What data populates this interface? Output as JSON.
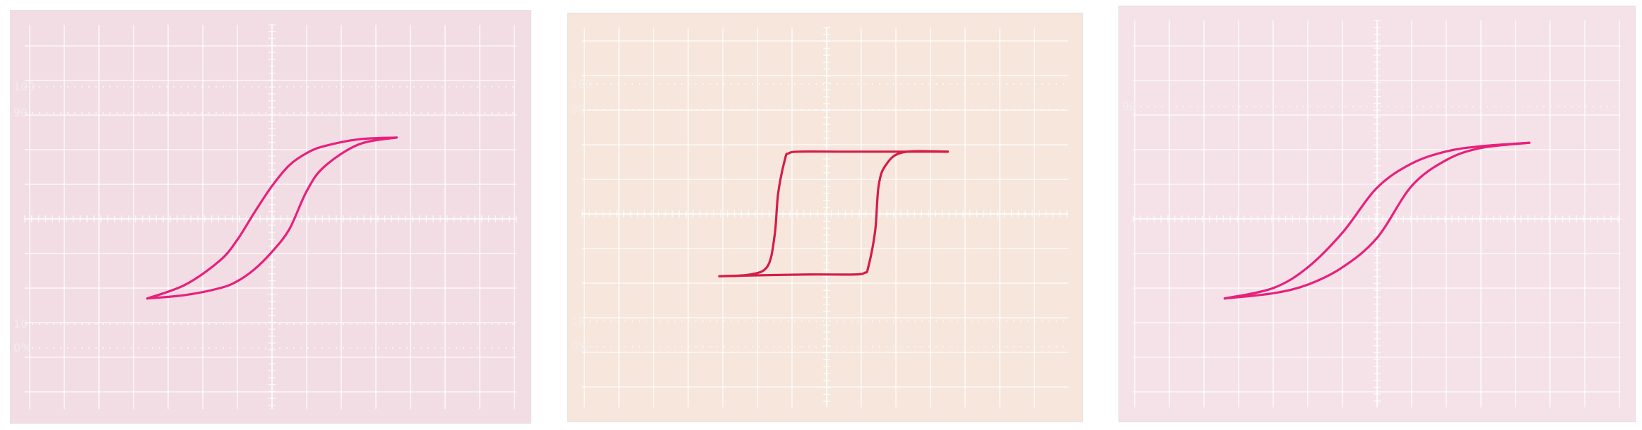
{
  "chart_data": [
    {
      "type": "line",
      "screen_labels": [
        "100",
        "90",
        "10",
        "0%"
      ],
      "grid": true,
      "background": "#f2dde4",
      "trace_color": "#e8207c",
      "series": [
        {
          "x": [
            -3.6,
            -2.5,
            -1.5,
            -1.0,
            -0.5,
            0.0,
            0.5,
            1.0,
            1.5,
            2.5,
            3.6
          ],
          "y": [
            -2.3,
            -1.9,
            -1.2,
            -0.6,
            0.2,
            0.95,
            1.55,
            1.9,
            2.1,
            2.3,
            2.35
          ]
        },
        {
          "x": [
            3.6,
            2.5,
            1.5,
            1.0,
            0.5,
            0.0,
            -0.5,
            -1.0,
            -1.5,
            -2.5,
            -3.6
          ],
          "y": [
            2.35,
            2.15,
            1.5,
            0.8,
            -0.3,
            -0.95,
            -1.45,
            -1.8,
            -2.0,
            -2.2,
            -2.3
          ]
        }
      ]
    },
    {
      "type": "line",
      "screen_labels": [
        "100",
        "90",
        "10",
        "0%"
      ],
      "grid": true,
      "background": "#f6e6dc",
      "trace_color": "#d41c48",
      "series": [
        {
          "x": [
            -3.1,
            -2.2,
            -1.7,
            -1.5,
            -1.4,
            -1.2,
            -1.1,
            -0.8,
            0.5,
            2.1,
            3.5
          ],
          "y": [
            -1.8,
            -1.75,
            -1.5,
            -0.6,
            0.6,
            1.6,
            1.75,
            1.8,
            1.8,
            1.8,
            1.8
          ]
        },
        {
          "x": [
            3.5,
            2.2,
            1.7,
            1.5,
            1.4,
            1.2,
            1.1,
            0.8,
            -0.5,
            -2.3,
            -3.1
          ],
          "y": [
            1.8,
            1.78,
            1.4,
            0.8,
            -0.5,
            -1.55,
            -1.7,
            -1.75,
            -1.75,
            -1.78,
            -1.8
          ]
        }
      ]
    },
    {
      "type": "line",
      "screen_labels": [
        "90"
      ],
      "grid": true,
      "background": "#f4e2e8",
      "trace_color": "#e8207c",
      "series": [
        {
          "x": [
            -4.4,
            -3.0,
            -2.0,
            -1.0,
            0.0,
            1.0,
            2.0,
            3.0,
            4.4
          ],
          "y": [
            -2.3,
            -2.0,
            -1.4,
            -0.4,
            0.9,
            1.6,
            1.95,
            2.1,
            2.2
          ]
        },
        {
          "x": [
            4.4,
            3.0,
            2.0,
            1.0,
            0.0,
            -1.0,
            -2.0,
            -3.0,
            -4.4
          ],
          "y": [
            2.2,
            2.05,
            1.7,
            0.95,
            -0.55,
            -1.4,
            -1.9,
            -2.15,
            -2.3
          ]
        }
      ]
    }
  ]
}
